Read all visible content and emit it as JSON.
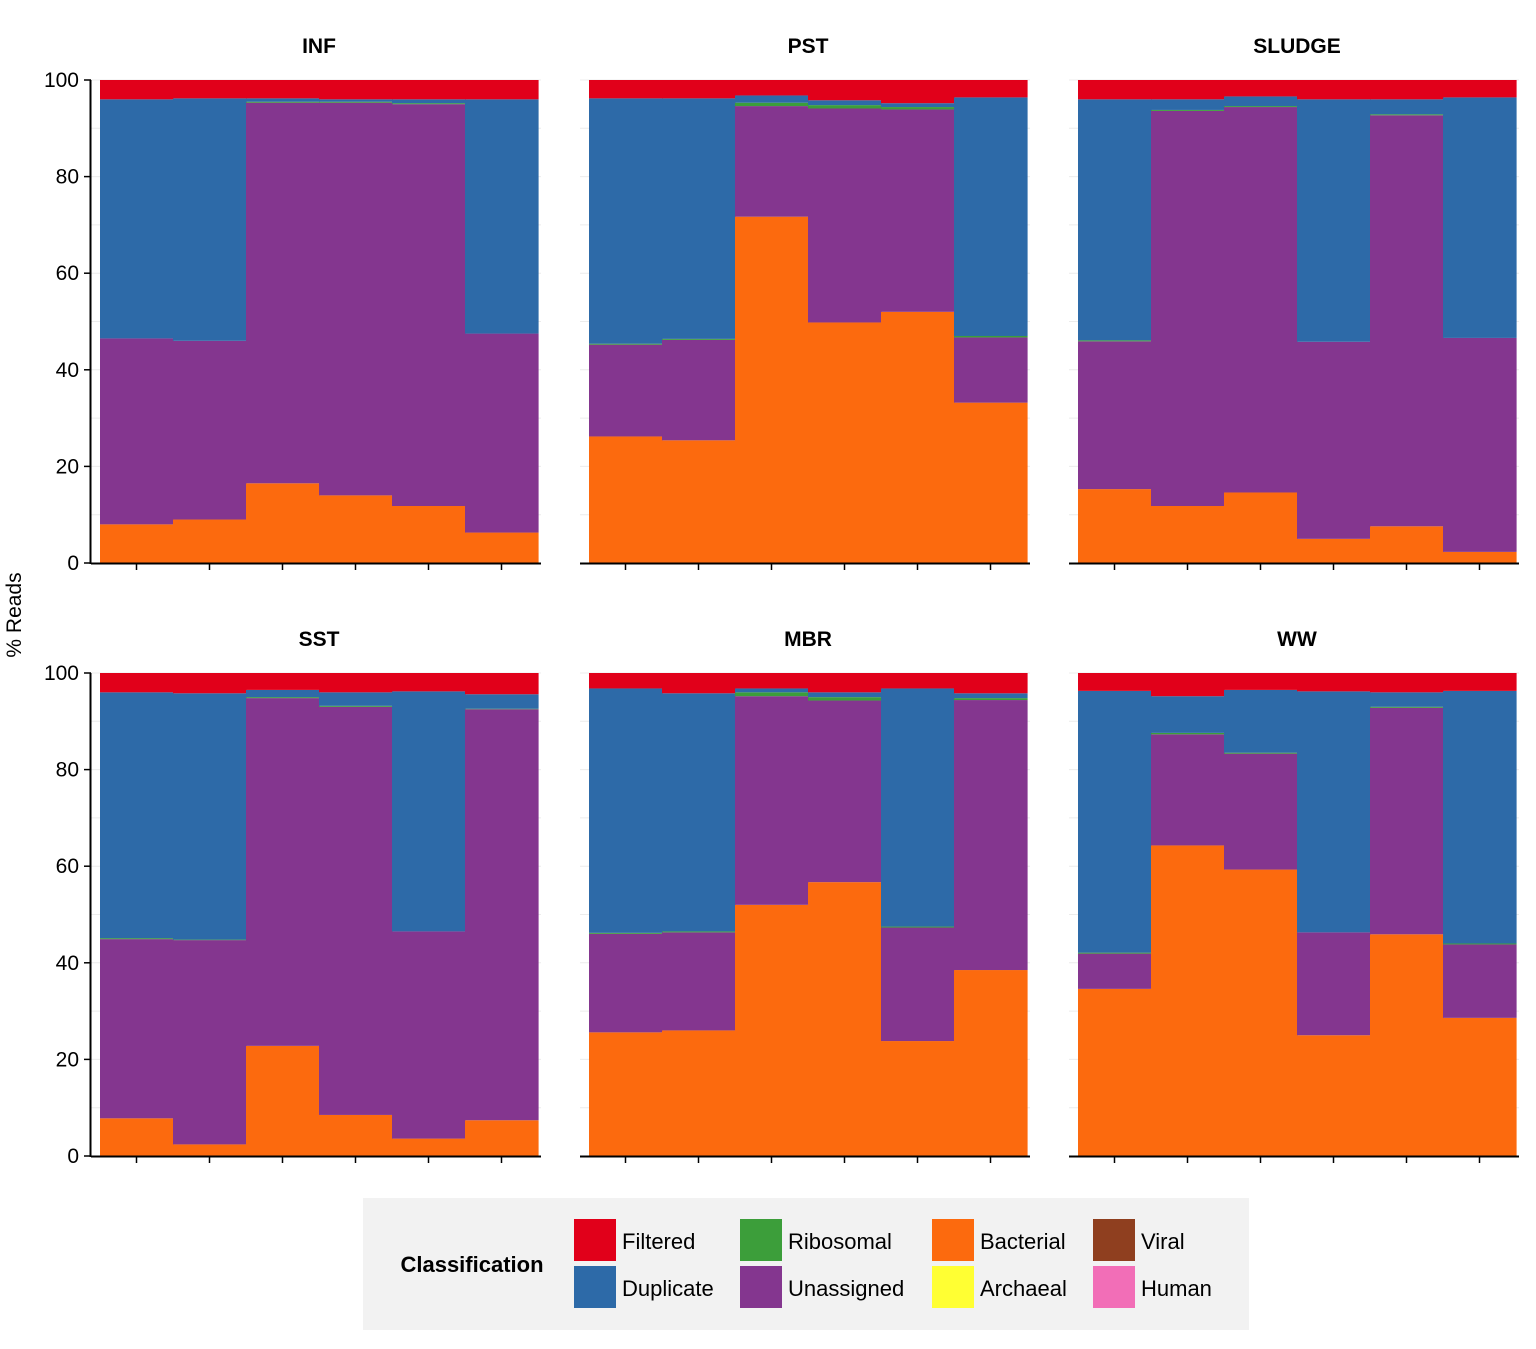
{
  "chart_data": {
    "type": "bar",
    "stacked": true,
    "ylabel": "% Reads",
    "ylim": [
      0,
      100
    ],
    "yticks": [
      0,
      20,
      40,
      60,
      80,
      100
    ],
    "facet_order": [
      "INF",
      "PST",
      "SLUDGE",
      "SST",
      "MBR",
      "WW"
    ],
    "legend": {
      "title": "Classification",
      "position": "bottom",
      "entries": [
        {
          "name": "Filtered",
          "color": "#e1001a"
        },
        {
          "name": "Duplicate",
          "color": "#2d6aa8"
        },
        {
          "name": "Ribosomal",
          "color": "#3c9e3a"
        },
        {
          "name": "Unassigned",
          "color": "#84368f"
        },
        {
          "name": "Bacterial",
          "color": "#fc6a0e"
        },
        {
          "name": "Archaeal",
          "color": "#ffff33"
        },
        {
          "name": "Viral",
          "color": "#8f3f1f"
        },
        {
          "name": "Human",
          "color": "#f26eb7"
        }
      ]
    },
    "stack_order": [
      "Bacterial",
      "Unassigned",
      "Ribosomal",
      "Duplicate",
      "Filtered"
    ],
    "facets": [
      {
        "title": "INF",
        "bars": [
          {
            "Bacterial": 8,
            "Unassigned": 38.5,
            "Ribosomal": 0,
            "Duplicate": 49.5,
            "Filtered": 4
          },
          {
            "Bacterial": 9,
            "Unassigned": 37,
            "Ribosomal": 0,
            "Duplicate": 50.2,
            "Filtered": 3.8
          },
          {
            "Bacterial": 16.5,
            "Unassigned": 78.8,
            "Ribosomal": 0.2,
            "Duplicate": 0.7,
            "Filtered": 3.8
          },
          {
            "Bacterial": 14,
            "Unassigned": 81.3,
            "Ribosomal": 0.2,
            "Duplicate": 0.5,
            "Filtered": 4
          },
          {
            "Bacterial": 11.8,
            "Unassigned": 83.2,
            "Ribosomal": 0.2,
            "Duplicate": 0.8,
            "Filtered": 4
          },
          {
            "Bacterial": 6.3,
            "Unassigned": 41.2,
            "Ribosomal": 0,
            "Duplicate": 48.5,
            "Filtered": 4
          }
        ]
      },
      {
        "title": "PST",
        "bars": [
          {
            "Bacterial": 26.2,
            "Unassigned": 19,
            "Ribosomal": 0.2,
            "Duplicate": 50.8,
            "Filtered": 3.8
          },
          {
            "Bacterial": 25.4,
            "Unassigned": 20.8,
            "Ribosomal": 0.2,
            "Duplicate": 49.8,
            "Filtered": 3.8
          },
          {
            "Bacterial": 71.7,
            "Unassigned": 22.9,
            "Ribosomal": 0.7,
            "Duplicate": 1.5,
            "Filtered": 3.2
          },
          {
            "Bacterial": 49.8,
            "Unassigned": 44.3,
            "Ribosomal": 0.7,
            "Duplicate": 1.0,
            "Filtered": 4.2
          },
          {
            "Bacterial": 52,
            "Unassigned": 41.9,
            "Ribosomal": 0.5,
            "Duplicate": 0.8,
            "Filtered": 4.8
          },
          {
            "Bacterial": 33.2,
            "Unassigned": 13.5,
            "Ribosomal": 0.3,
            "Duplicate": 49.4,
            "Filtered": 3.6
          }
        ]
      },
      {
        "title": "SLUDGE",
        "bars": [
          {
            "Bacterial": 15.3,
            "Unassigned": 30.6,
            "Ribosomal": 0.2,
            "Duplicate": 49.9,
            "Filtered": 4
          },
          {
            "Bacterial": 11.8,
            "Unassigned": 81.8,
            "Ribosomal": 0.2,
            "Duplicate": 2.2,
            "Filtered": 4
          },
          {
            "Bacterial": 14.6,
            "Unassigned": 79.8,
            "Ribosomal": 0.2,
            "Duplicate": 2.0,
            "Filtered": 3.4
          },
          {
            "Bacterial": 5,
            "Unassigned": 40.8,
            "Ribosomal": 0,
            "Duplicate": 50.2,
            "Filtered": 4
          },
          {
            "Bacterial": 7.6,
            "Unassigned": 85.1,
            "Ribosomal": 0.2,
            "Duplicate": 3.1,
            "Filtered": 4
          },
          {
            "Bacterial": 2.3,
            "Unassigned": 44.3,
            "Ribosomal": 0,
            "Duplicate": 49.8,
            "Filtered": 3.6
          }
        ]
      },
      {
        "title": "SST",
        "bars": [
          {
            "Bacterial": 7.8,
            "Unassigned": 37.1,
            "Ribosomal": 0.2,
            "Duplicate": 50.9,
            "Filtered": 4
          },
          {
            "Bacterial": 2.4,
            "Unassigned": 42.3,
            "Ribosomal": 0.1,
            "Duplicate": 51,
            "Filtered": 4.2
          },
          {
            "Bacterial": 22.8,
            "Unassigned": 72,
            "Ribosomal": 0.2,
            "Duplicate": 1.5,
            "Filtered": 3.5
          },
          {
            "Bacterial": 8.5,
            "Unassigned": 84.5,
            "Ribosomal": 0.2,
            "Duplicate": 2.8,
            "Filtered": 4
          },
          {
            "Bacterial": 3.6,
            "Unassigned": 42.9,
            "Ribosomal": 0,
            "Duplicate": 49.7,
            "Filtered": 3.8
          },
          {
            "Bacterial": 7.4,
            "Unassigned": 85.1,
            "Ribosomal": 0.1,
            "Duplicate": 3.0,
            "Filtered": 4.4
          }
        ]
      },
      {
        "title": "MBR",
        "bars": [
          {
            "Bacterial": 25.6,
            "Unassigned": 20.4,
            "Ribosomal": 0.2,
            "Duplicate": 50.6,
            "Filtered": 3.2
          },
          {
            "Bacterial": 26,
            "Unassigned": 20.3,
            "Ribosomal": 0.2,
            "Duplicate": 49.3,
            "Filtered": 4.2
          },
          {
            "Bacterial": 52,
            "Unassigned": 43.2,
            "Ribosomal": 0.8,
            "Duplicate": 0.8,
            "Filtered": 3.2
          },
          {
            "Bacterial": 56.7,
            "Unassigned": 37.6,
            "Ribosomal": 0.7,
            "Duplicate": 1.0,
            "Filtered": 4.0
          },
          {
            "Bacterial": 23.8,
            "Unassigned": 23.5,
            "Ribosomal": 0.2,
            "Duplicate": 49.3,
            "Filtered": 3.2
          },
          {
            "Bacterial": 38.5,
            "Unassigned": 55.9,
            "Ribosomal": 0.4,
            "Duplicate": 1.0,
            "Filtered": 4.2
          }
        ]
      },
      {
        "title": "WW",
        "bars": [
          {
            "Bacterial": 34.6,
            "Unassigned": 7.3,
            "Ribosomal": 0.2,
            "Duplicate": 54.2,
            "Filtered": 3.7
          },
          {
            "Bacterial": 64.3,
            "Unassigned": 23,
            "Ribosomal": 0.3,
            "Duplicate": 7.6,
            "Filtered": 4.8
          },
          {
            "Bacterial": 59.3,
            "Unassigned": 24,
            "Ribosomal": 0.2,
            "Duplicate": 13.0,
            "Filtered": 3.5
          },
          {
            "Bacterial": 25,
            "Unassigned": 21.3,
            "Ribosomal": 0,
            "Duplicate": 49.9,
            "Filtered": 3.8
          },
          {
            "Bacterial": 45.9,
            "Unassigned": 46.9,
            "Ribosomal": 0.2,
            "Duplicate": 3.0,
            "Filtered": 4
          },
          {
            "Bacterial": 28.6,
            "Unassigned": 15.2,
            "Ribosomal": 0.2,
            "Duplicate": 52.3,
            "Filtered": 3.7
          }
        ]
      }
    ]
  }
}
